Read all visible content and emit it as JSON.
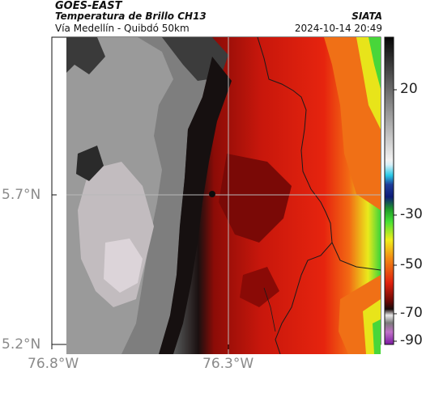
{
  "header": {
    "satellite": "GOES-EAST",
    "product": "Temperatura de Brillo CH13",
    "region": "Vía Medellín - Quibdó 50km",
    "organization": "SIATA",
    "datetime": "2024-10-14 20:49"
  },
  "axes": {
    "lat_labels": [
      "5.7°N",
      "5.2°N"
    ],
    "lon_labels": [
      "76.8°W",
      "76.3°W"
    ]
  },
  "colorbar": {
    "tick_labels": [
      "20",
      "-30",
      "-50",
      "-70",
      "-90"
    ]
  },
  "colors": {
    "warm_red": "#d81a0e",
    "deep_red": "#6e0805",
    "orange": "#f26a14",
    "yellow": "#e8e81a",
    "green": "#38d23a",
    "cloud_gray": "#7a7a7a",
    "cloud_light": "#d9d2d6",
    "cloud_dark": "#1e1e1e",
    "border_line": "#1a1a1a",
    "grid_line": "#b8b8b8"
  }
}
